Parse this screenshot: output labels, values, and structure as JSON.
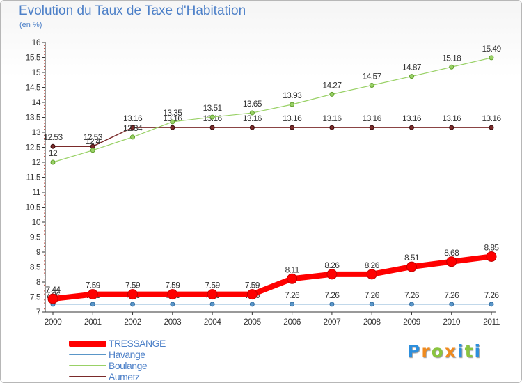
{
  "title": "Evolution du Taux de Taxe d'Habitation",
  "unit": "(en %)",
  "brand": {
    "letters": [
      "P",
      "r",
      "o",
      "x",
      "i",
      "t",
      "i"
    ],
    "colors": [
      "#2d8fdd",
      "#f08a1d",
      "#8ac43f",
      "#f08a1d",
      "#2d8fdd",
      "#8ac43f",
      "#2d8fdd"
    ]
  },
  "chart_data": {
    "type": "line",
    "x": [
      "2000",
      "2001",
      "2002",
      "2003",
      "2004",
      "2005",
      "2006",
      "2007",
      "2008",
      "2009",
      "2010",
      "2011"
    ],
    "ylim": [
      7,
      16
    ],
    "y_ticks": [
      "7",
      "7.5",
      "8",
      "8.5",
      "9",
      "9.5",
      "10",
      "10.5",
      "11",
      "11.5",
      "12",
      "12.5",
      "13",
      "13.5",
      "14",
      "14.5",
      "15",
      "15.5",
      "16"
    ],
    "grid": false,
    "legend_position": "bottom-left",
    "series": [
      {
        "name": "TRESSANGE",
        "color": "#ff0000",
        "values": [
          7.44,
          7.59,
          7.59,
          7.59,
          7.59,
          7.59,
          8.11,
          8.26,
          8.26,
          8.51,
          8.68,
          8.85
        ],
        "labels": [
          "7.44",
          "7.59",
          "7.59",
          "7.59",
          "7.59",
          "7.59",
          "8.11",
          "8.26",
          "8.26",
          "8.51",
          "8.68",
          "8.85"
        ]
      },
      {
        "name": "Havange",
        "color": "#5a96c8",
        "values": [
          7.26,
          7.26,
          7.26,
          7.26,
          7.26,
          7.26,
          7.26,
          7.26,
          7.26,
          7.26,
          7.26,
          7.26
        ],
        "labels": [
          "7.26",
          "7.26",
          "7.26",
          "7.26",
          "7.26",
          "7.26",
          "7.26",
          "7.26",
          "7.26",
          "7.26",
          "7.26",
          "7.26"
        ]
      },
      {
        "name": "Boulange",
        "color": "#99d166",
        "values": [
          12,
          12.4,
          12.84,
          13.35,
          13.51,
          13.65,
          13.93,
          14.27,
          14.57,
          14.87,
          15.18,
          15.49
        ],
        "labels": [
          "12",
          "12.4",
          "12.84",
          "13.35",
          "13.51",
          "13.65",
          "13.93",
          "14.27",
          "14.57",
          "14.87",
          "15.18",
          "15.49"
        ]
      },
      {
        "name": "Aumetz",
        "color": "#7a2a2a",
        "values": [
          12.53,
          12.53,
          13.16,
          13.16,
          13.16,
          13.16,
          13.16,
          13.16,
          13.16,
          13.16,
          13.16,
          13.16
        ],
        "labels": [
          "12.53",
          "12.53",
          "13.16",
          "13.16",
          "13.16",
          "13.16",
          "13.16",
          "13.16",
          "13.16",
          "13.16",
          "13.16",
          "13.16"
        ]
      }
    ]
  }
}
